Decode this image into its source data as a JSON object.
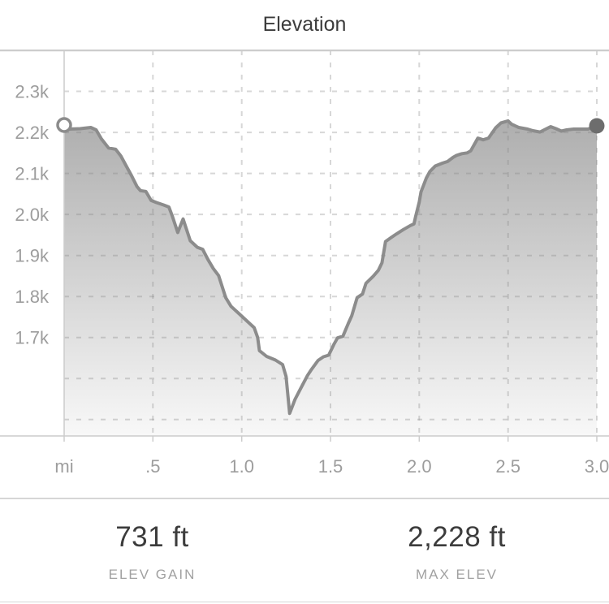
{
  "title": "Elevation",
  "colors": {
    "title_text": "#3c3c3c",
    "tick_text": "#9d9d9d",
    "grid": "#828282",
    "axis_border": "#cccccc",
    "divider": "#d6d6d6",
    "line": "#8c8c8c",
    "area_top": "#aeaeae",
    "area_bottom": "#f9f9f9",
    "start_dot_fill": "#ffffff",
    "start_dot_stroke": "#8c8c8c",
    "end_dot_fill": "#6d6d6d"
  },
  "chart_data": {
    "type": "area",
    "title": "Elevation",
    "xlabel": "mi",
    "ylabel": "ft",
    "xlim": [
      0,
      3.0
    ],
    "ylim": [
      1460,
      2400
    ],
    "grid": true,
    "legend": false,
    "x_ticks": [
      {
        "label": "mi",
        "value": 0
      },
      {
        "label": ".5",
        "value": 0.5
      },
      {
        "label": "1.0",
        "value": 1.0
      },
      {
        "label": "1.5",
        "value": 1.5
      },
      {
        "label": "2.0",
        "value": 2.0
      },
      {
        "label": "2.5",
        "value": 2.5
      },
      {
        "label": "3.0",
        "value": 3.0
      }
    ],
    "y_ticks": [
      {
        "label": "2.3k",
        "value": 2300
      },
      {
        "label": "2.2k",
        "value": 2200
      },
      {
        "label": "2.1k",
        "value": 2100
      },
      {
        "label": "2.0k",
        "value": 2000
      },
      {
        "label": "1.9k",
        "value": 1900
      },
      {
        "label": "1.8k",
        "value": 1800
      },
      {
        "label": "1.7k",
        "value": 1700
      }
    ],
    "y_grid_values": [
      2300,
      2200,
      2100,
      2000,
      1900,
      1800,
      1700,
      1600,
      1500
    ],
    "x_grid_values": [
      0.5,
      1.0,
      1.5,
      2.0,
      2.5,
      3.0
    ],
    "start_marker": "open-circle",
    "end_marker": "filled-circle",
    "points": [
      [
        0.0,
        2218
      ],
      [
        0.03,
        2208
      ],
      [
        0.09,
        2209
      ],
      [
        0.15,
        2212
      ],
      [
        0.18,
        2206
      ],
      [
        0.21,
        2184
      ],
      [
        0.25,
        2162
      ],
      [
        0.29,
        2159
      ],
      [
        0.32,
        2142
      ],
      [
        0.35,
        2118
      ],
      [
        0.38,
        2094
      ],
      [
        0.41,
        2068
      ],
      [
        0.43,
        2058
      ],
      [
        0.46,
        2056
      ],
      [
        0.49,
        2034
      ],
      [
        0.52,
        2029
      ],
      [
        0.56,
        2023
      ],
      [
        0.59,
        2018
      ],
      [
        0.61,
        1995
      ],
      [
        0.64,
        1956
      ],
      [
        0.67,
        1989
      ],
      [
        0.71,
        1936
      ],
      [
        0.75,
        1920
      ],
      [
        0.78,
        1915
      ],
      [
        0.81,
        1890
      ],
      [
        0.84,
        1868
      ],
      [
        0.87,
        1851
      ],
      [
        0.91,
        1797
      ],
      [
        0.94,
        1776
      ],
      [
        0.98,
        1760
      ],
      [
        1.01,
        1748
      ],
      [
        1.07,
        1724
      ],
      [
        1.09,
        1700
      ],
      [
        1.1,
        1668
      ],
      [
        1.14,
        1654
      ],
      [
        1.19,
        1645
      ],
      [
        1.23,
        1634
      ],
      [
        1.25,
        1605
      ],
      [
        1.27,
        1515
      ],
      [
        1.3,
        1549
      ],
      [
        1.33,
        1574
      ],
      [
        1.37,
        1607
      ],
      [
        1.39,
        1620
      ],
      [
        1.43,
        1644
      ],
      [
        1.46,
        1653
      ],
      [
        1.49,
        1657
      ],
      [
        1.52,
        1684
      ],
      [
        1.54,
        1699
      ],
      [
        1.57,
        1703
      ],
      [
        1.6,
        1734
      ],
      [
        1.62,
        1753
      ],
      [
        1.65,
        1797
      ],
      [
        1.68,
        1806
      ],
      [
        1.7,
        1832
      ],
      [
        1.74,
        1849
      ],
      [
        1.77,
        1864
      ],
      [
        1.79,
        1882
      ],
      [
        1.81,
        1934
      ],
      [
        1.84,
        1943
      ],
      [
        1.87,
        1952
      ],
      [
        1.91,
        1963
      ],
      [
        1.95,
        1973
      ],
      [
        1.97,
        1977
      ],
      [
        1.98,
        1996
      ],
      [
        2.0,
        2030
      ],
      [
        2.01,
        2055
      ],
      [
        2.04,
        2089
      ],
      [
        2.06,
        2105
      ],
      [
        2.09,
        2118
      ],
      [
        2.13,
        2125
      ],
      [
        2.16,
        2129
      ],
      [
        2.19,
        2139
      ],
      [
        2.21,
        2144
      ],
      [
        2.24,
        2148
      ],
      [
        2.27,
        2150
      ],
      [
        2.29,
        2155
      ],
      [
        2.33,
        2186
      ],
      [
        2.36,
        2182
      ],
      [
        2.39,
        2186
      ],
      [
        2.43,
        2211
      ],
      [
        2.46,
        2223
      ],
      [
        2.5,
        2228
      ],
      [
        2.52,
        2220
      ],
      [
        2.56,
        2212
      ],
      [
        2.61,
        2208
      ],
      [
        2.64,
        2204
      ],
      [
        2.68,
        2201
      ],
      [
        2.74,
        2214
      ],
      [
        2.77,
        2209
      ],
      [
        2.8,
        2203
      ],
      [
        2.83,
        2206
      ],
      [
        2.87,
        2208
      ],
      [
        2.95,
        2208
      ],
      [
        3.0,
        2216
      ]
    ]
  },
  "stats": [
    {
      "value": "731 ft",
      "label": "ELEV GAIN"
    },
    {
      "value": "2,228 ft",
      "label": "MAX ELEV"
    }
  ]
}
